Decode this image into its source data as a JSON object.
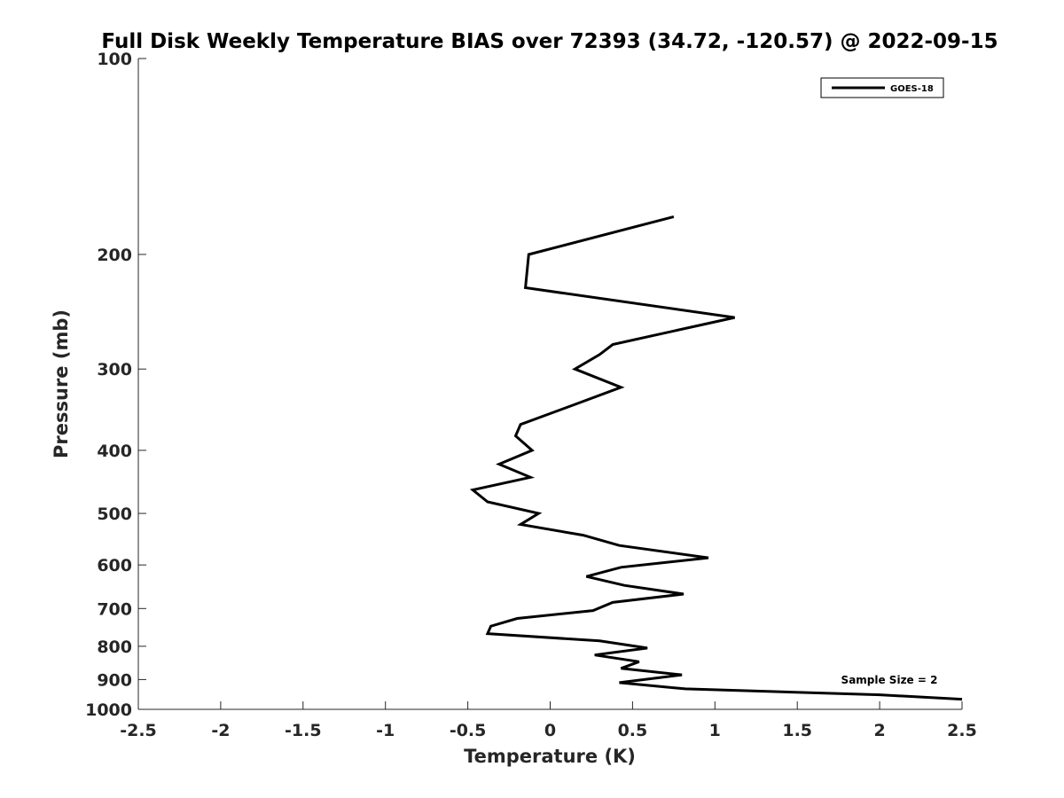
{
  "chart_data": {
    "type": "line",
    "title": "Full Disk Weekly Temperature BIAS over 72393 (34.72, -120.57) @ 2022-09-15",
    "xlabel": "Temperature (K)",
    "ylabel": "Pressure (mb)",
    "xlim": [
      -2.5,
      2.5
    ],
    "ylim": [
      1000,
      100
    ],
    "y_scale": "log",
    "y_reversed": true,
    "x_ticks": [
      "-2.5",
      "-2",
      "-1.5",
      "-1",
      "-0.5",
      "0",
      "0.5",
      "1",
      "1.5",
      "2",
      "2.5"
    ],
    "y_ticks": [
      100,
      200,
      300,
      400,
      500,
      600,
      700,
      800,
      900,
      1000
    ],
    "y_tick_labels": [
      "100",
      "200",
      "300",
      "400",
      "500",
      "600",
      "700",
      "800",
      "900",
      "1000"
    ],
    "grid": false,
    "legend": {
      "position": "top-right",
      "entries": [
        "GOES-18"
      ]
    },
    "annotation": "Sample Size = 2",
    "series": [
      {
        "name": "GOES-18",
        "color": "#000000",
        "points": [
          {
            "x": 0.75,
            "y": 175
          },
          {
            "x": -0.13,
            "y": 200
          },
          {
            "x": -0.15,
            "y": 225
          },
          {
            "x": 1.12,
            "y": 250
          },
          {
            "x": 0.38,
            "y": 275
          },
          {
            "x": 0.3,
            "y": 285
          },
          {
            "x": 0.15,
            "y": 300
          },
          {
            "x": 0.43,
            "y": 320
          },
          {
            "x": 0.15,
            "y": 340
          },
          {
            "x": -0.18,
            "y": 365
          },
          {
            "x": -0.21,
            "y": 380
          },
          {
            "x": -0.11,
            "y": 400
          },
          {
            "x": -0.31,
            "y": 420
          },
          {
            "x": -0.12,
            "y": 440
          },
          {
            "x": -0.47,
            "y": 460
          },
          {
            "x": -0.38,
            "y": 480
          },
          {
            "x": -0.07,
            "y": 500
          },
          {
            "x": -0.18,
            "y": 520
          },
          {
            "x": 0.2,
            "y": 540
          },
          {
            "x": 0.42,
            "y": 560
          },
          {
            "x": 0.96,
            "y": 585
          },
          {
            "x": 0.43,
            "y": 605
          },
          {
            "x": 0.22,
            "y": 625
          },
          {
            "x": 0.45,
            "y": 645
          },
          {
            "x": 0.81,
            "y": 665
          },
          {
            "x": 0.38,
            "y": 685
          },
          {
            "x": 0.26,
            "y": 705
          },
          {
            "x": -0.2,
            "y": 725
          },
          {
            "x": -0.36,
            "y": 745
          },
          {
            "x": -0.38,
            "y": 765
          },
          {
            "x": 0.3,
            "y": 785
          },
          {
            "x": 0.59,
            "y": 805
          },
          {
            "x": 0.27,
            "y": 825
          },
          {
            "x": 0.54,
            "y": 845
          },
          {
            "x": 0.43,
            "y": 865
          },
          {
            "x": 0.8,
            "y": 885
          },
          {
            "x": 0.42,
            "y": 910
          },
          {
            "x": 0.82,
            "y": 930
          },
          {
            "x": 2.0,
            "y": 950
          },
          {
            "x": 2.5,
            "y": 965
          }
        ]
      }
    ]
  }
}
